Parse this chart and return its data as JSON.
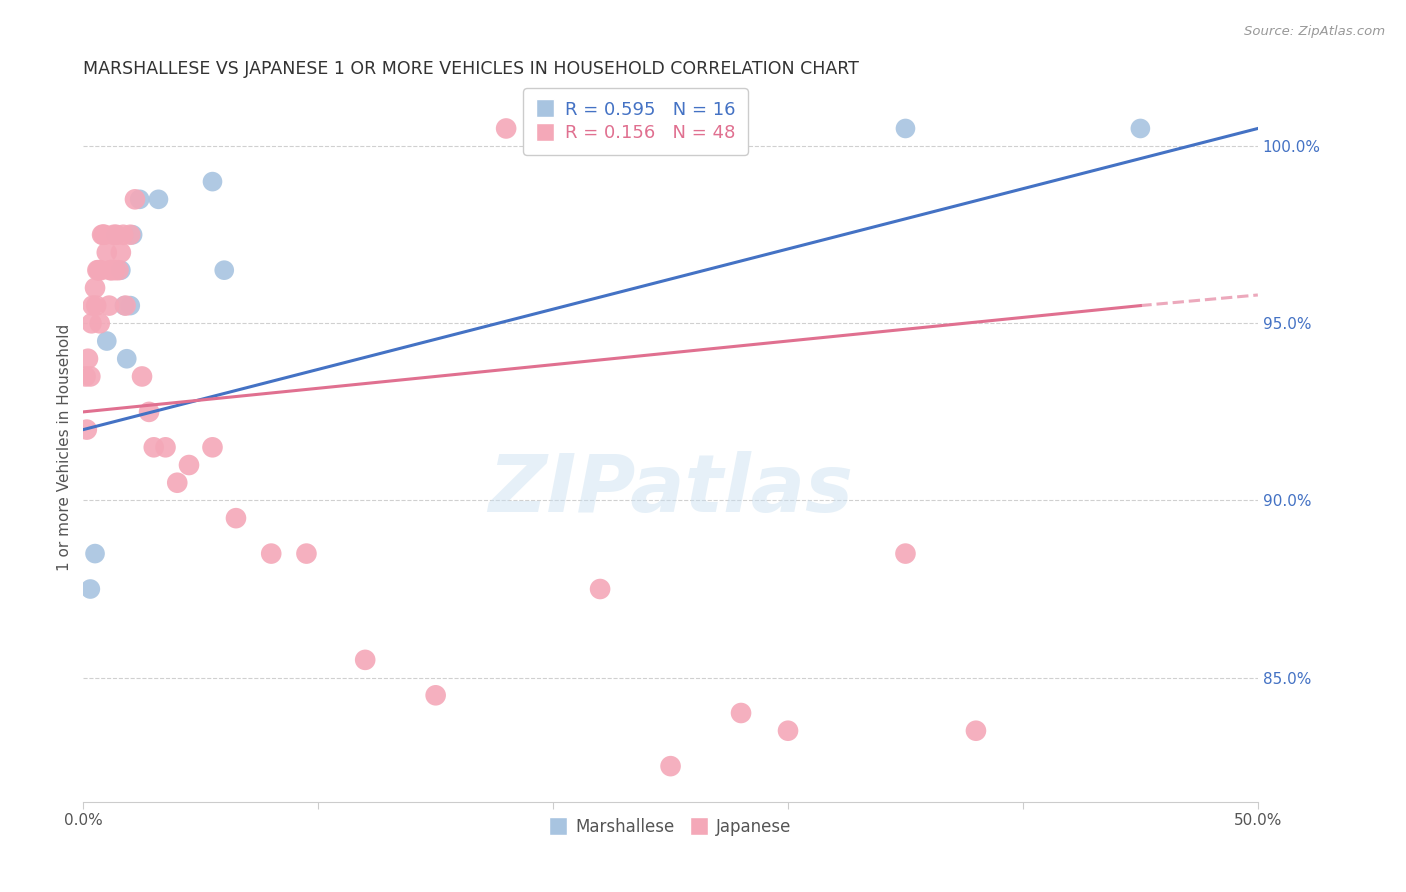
{
  "title": "MARSHALLESE VS JAPANESE 1 OR MORE VEHICLES IN HOUSEHOLD CORRELATION CHART",
  "source": "Source: ZipAtlas.com",
  "ylabel": "1 or more Vehicles in Household",
  "xlim": [
    0.0,
    50.0
  ],
  "ylim": [
    81.5,
    101.5
  ],
  "legend_blue_R": "0.595",
  "legend_blue_N": "16",
  "legend_pink_R": "0.156",
  "legend_pink_N": "48",
  "blue_scatter_color": "#a8c4e0",
  "pink_scatter_color": "#f4a8b8",
  "blue_line_color": "#4472c4",
  "pink_line_color": "#e07090",
  "right_axis_color": "#4472c4",
  "watermark_text": "ZIPatlas",
  "background_color": "#ffffff",
  "grid_color": "#d0d0d0",
  "marshallese_x": [
    0.3,
    0.5,
    1.0,
    1.4,
    1.6,
    1.75,
    1.85,
    2.0,
    2.1,
    2.4,
    3.2,
    5.5,
    6.0,
    22.0,
    35.0,
    45.0
  ],
  "marshallese_y": [
    87.5,
    88.5,
    94.5,
    97.5,
    96.5,
    95.5,
    94.0,
    95.5,
    97.5,
    98.5,
    98.5,
    99.0,
    96.5,
    100.5,
    100.5,
    100.5
  ],
  "japanese_x": [
    0.1,
    0.15,
    0.2,
    0.3,
    0.35,
    0.4,
    0.5,
    0.55,
    0.6,
    0.65,
    0.7,
    0.75,
    0.8,
    0.85,
    0.9,
    1.0,
    1.1,
    1.15,
    1.2,
    1.3,
    1.35,
    1.4,
    1.5,
    1.6,
    1.7,
    1.8,
    2.0,
    2.2,
    2.5,
    2.8,
    3.0,
    3.5,
    4.0,
    4.5,
    5.5,
    6.5,
    8.0,
    9.5,
    12.0,
    15.0,
    18.0,
    20.0,
    22.0,
    25.0,
    28.0,
    30.0,
    35.0,
    38.0
  ],
  "japanese_y": [
    93.5,
    92.0,
    94.0,
    93.5,
    95.0,
    95.5,
    96.0,
    95.5,
    96.5,
    96.5,
    95.0,
    96.5,
    97.5,
    97.5,
    97.5,
    97.0,
    95.5,
    96.5,
    96.5,
    97.5,
    96.5,
    97.5,
    96.5,
    97.0,
    97.5,
    95.5,
    97.5,
    98.5,
    93.5,
    92.5,
    91.5,
    91.5,
    90.5,
    91.0,
    91.5,
    89.5,
    88.5,
    88.5,
    85.5,
    84.5,
    100.5,
    100.5,
    87.5,
    82.5,
    84.0,
    83.5,
    88.5,
    83.5
  ],
  "blue_line_x0": 0.0,
  "blue_line_y0": 92.0,
  "blue_line_x1": 50.0,
  "blue_line_y1": 100.5,
  "pink_line_x0": 0.0,
  "pink_line_y0": 92.5,
  "pink_line_x1": 45.0,
  "pink_line_y1": 95.5,
  "pink_dash_x0": 45.0,
  "pink_dash_y0": 95.5,
  "pink_dash_x1": 50.0,
  "pink_dash_y1": 95.8
}
